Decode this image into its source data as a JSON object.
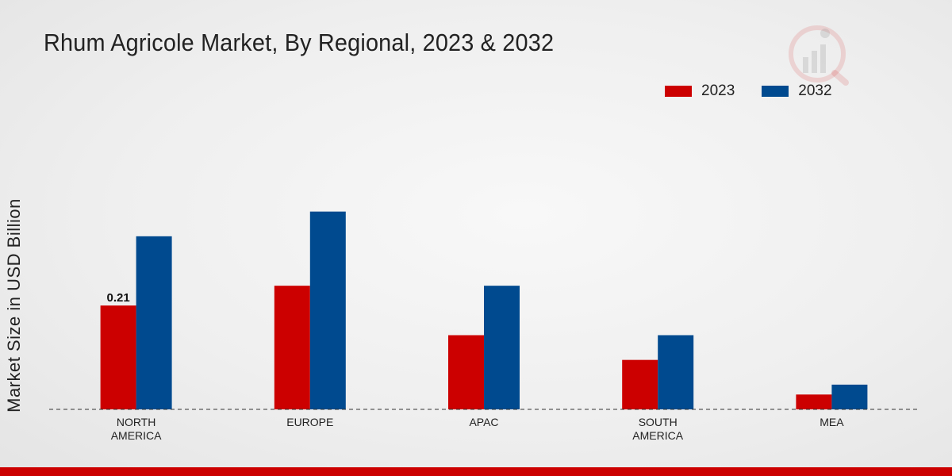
{
  "chart_data": {
    "type": "bar",
    "title": "Rhum Agricole Market, By Regional, 2023 & 2032",
    "xlabel": "",
    "ylabel": "Market Size in USD Billion",
    "categories": [
      [
        "NORTH",
        "AMERICA"
      ],
      [
        "EUROPE"
      ],
      [
        "APAC"
      ],
      [
        "SOUTH",
        "AMERICA"
      ],
      [
        "MEA"
      ]
    ],
    "series": [
      {
        "name": "2023",
        "color": "#cc0000",
        "values": [
          0.21,
          0.25,
          0.15,
          0.1,
          0.03
        ]
      },
      {
        "name": "2032",
        "color": "#004a8f",
        "values": [
          0.35,
          0.4,
          0.25,
          0.15,
          0.05
        ]
      }
    ],
    "data_labels": [
      {
        "series": 0,
        "index": 0,
        "text": "0.21"
      }
    ],
    "ylim": [
      0,
      0.6
    ],
    "grid": false,
    "legend_position": "top-right"
  },
  "logo": {
    "icon": "mrfr-logo-icon",
    "color": "#cc0000"
  }
}
